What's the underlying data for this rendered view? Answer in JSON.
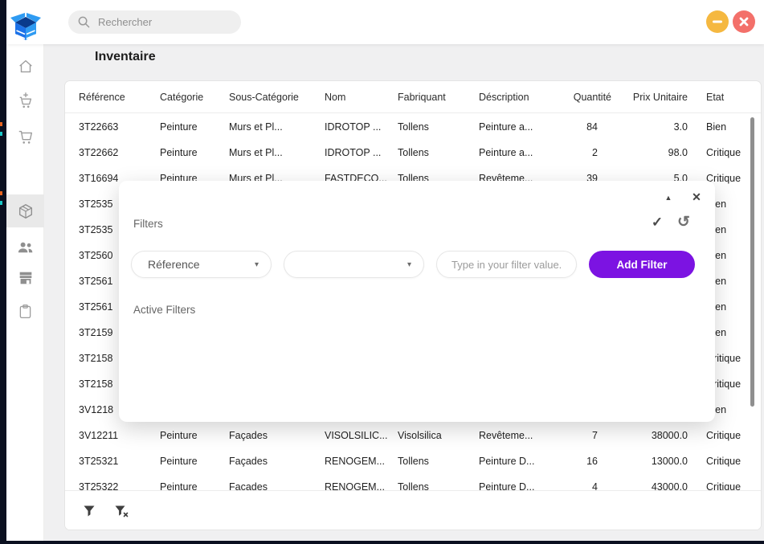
{
  "window": {
    "search": {
      "placeholder": "Rechercher"
    },
    "controls": {
      "minimize": "minimize",
      "close": "close"
    }
  },
  "sidebar": {
    "items": [
      "home",
      "add-cart",
      "cart",
      "inventory",
      "customers",
      "store",
      "orders"
    ],
    "selected_index": 3
  },
  "page": {
    "title": "Inventaire"
  },
  "table": {
    "columns": [
      "Référence",
      "Catégorie",
      "Sous-Catégorie",
      "Nom",
      "Fabriquant",
      "Déscription",
      "Quantité",
      "Prix Unitaire",
      "Etat"
    ],
    "rows": [
      [
        "3T22663",
        "Peinture",
        "Murs et Pl...",
        "IDROTOP ...",
        "Tollens",
        "Peinture a...",
        "84",
        "3.0",
        "Bien"
      ],
      [
        "3T22662",
        "Peinture",
        "Murs et Pl...",
        "IDROTOP ...",
        "Tollens",
        "Peinture a...",
        "2",
        "98.0",
        "Critique"
      ],
      [
        "3T16694",
        "Peinture",
        "Murs et Pl...",
        "FASTDECO...",
        "Tollens",
        "Revêteme...",
        "39",
        "5.0",
        "Critique"
      ],
      [
        "3T2535",
        "",
        "",
        "",
        "",
        "",
        "",
        "",
        "Bien"
      ],
      [
        "3T2535",
        "",
        "",
        "",
        "",
        "",
        "",
        "",
        "Bien"
      ],
      [
        "3T2560",
        "",
        "",
        "",
        "",
        "",
        "",
        "",
        "Bien"
      ],
      [
        "3T2561",
        "",
        "",
        "",
        "",
        "",
        "",
        "",
        "Bien"
      ],
      [
        "3T2561",
        "",
        "",
        "",
        "",
        "",
        "",
        "",
        "Bien"
      ],
      [
        "3T2159",
        "",
        "",
        "",
        "",
        "",
        "",
        "",
        "Bien"
      ],
      [
        "3T2158",
        "",
        "",
        "",
        "",
        "",
        "",
        "",
        "Critique"
      ],
      [
        "3T2158",
        "",
        "",
        "",
        "",
        "",
        "",
        "",
        "Critique"
      ],
      [
        "3V1218",
        "",
        "",
        "",
        "",
        "",
        "",
        "",
        "Bien"
      ],
      [
        "3V12211",
        "Peinture",
        "Façades",
        "VISOLSILIC...",
        "Visolsilica",
        "Revêteme...",
        "7",
        "38000.0",
        "Critique"
      ],
      [
        "3T25321",
        "Peinture",
        "Façades",
        "RENOGEM...",
        "Tollens",
        "Peinture D...",
        "16",
        "13000.0",
        "Critique"
      ],
      [
        "3T25322",
        "Peinture",
        "Façades",
        "RENOGEM...",
        "Tollens",
        "Peinture D...",
        "4",
        "43000.0",
        "Critique"
      ]
    ]
  },
  "filters_dialog": {
    "title": "Filters",
    "field_select": {
      "value": "Réference"
    },
    "operator_select": {
      "value": ""
    },
    "value_input": {
      "placeholder": "Type in your filter value..."
    },
    "add_button": {
      "label": "Add Filter"
    },
    "active_filters_label": "Active Filters",
    "accent_color": "#7c13e2"
  },
  "colors": {
    "accent_purple": "#7c13e2",
    "minimize_button": "#f5b840",
    "close_button": "#f3706a",
    "edge": "#0b1020"
  }
}
